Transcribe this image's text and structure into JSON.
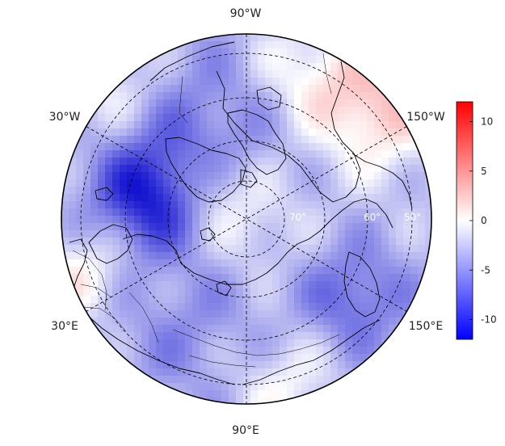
{
  "map": {
    "projection": "north-polar-stereographic",
    "longitude_labels": [
      {
        "id": "90w",
        "text": "90°W"
      },
      {
        "id": "30w",
        "text": "30°W"
      },
      {
        "id": "150w",
        "text": "150°W"
      },
      {
        "id": "30e",
        "text": "30°E"
      },
      {
        "id": "150e",
        "text": "150°E"
      },
      {
        "id": "90e",
        "text": "90°E"
      }
    ],
    "latitude_labels": [
      "70°",
      "60°",
      "50°"
    ],
    "colors": {
      "min": "#0000cc",
      "mid": "#ffffff",
      "max": "#ee1111",
      "coastline": "#000000",
      "gridline": "#000000"
    }
  },
  "colorbar": {
    "min": -12,
    "max": 12,
    "ticks": [
      {
        "value": 10,
        "label": "10"
      },
      {
        "value": 5,
        "label": "5"
      },
      {
        "value": 0,
        "label": "0"
      },
      {
        "value": -5,
        "label": "-5"
      },
      {
        "value": -10,
        "label": "-10"
      }
    ]
  }
}
